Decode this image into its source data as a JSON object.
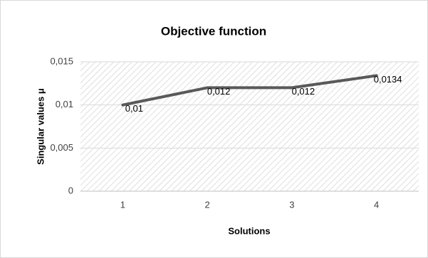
{
  "chart_data": {
    "type": "line",
    "title": "Objective function",
    "x_label": "Solutions",
    "y_label": "Singular values μ",
    "categories": [
      "1",
      "2",
      "3",
      "4"
    ],
    "series": [
      {
        "name": "Singular values μ",
        "color": "#595959",
        "values": [
          0.01,
          0.012,
          0.012,
          0.0134
        ],
        "value_labels": [
          "0,01",
          "0,012",
          "0,012",
          "0,0134"
        ]
      }
    ],
    "ylim": [
      0,
      0.015
    ],
    "yticks": [
      0,
      {
        "value": 0.005,
        "label": "0,005"
      },
      {
        "value": 0.01,
        "label": "0,01"
      },
      {
        "value": 0.015,
        "label": "0,015"
      }
    ],
    "grid": true
  }
}
